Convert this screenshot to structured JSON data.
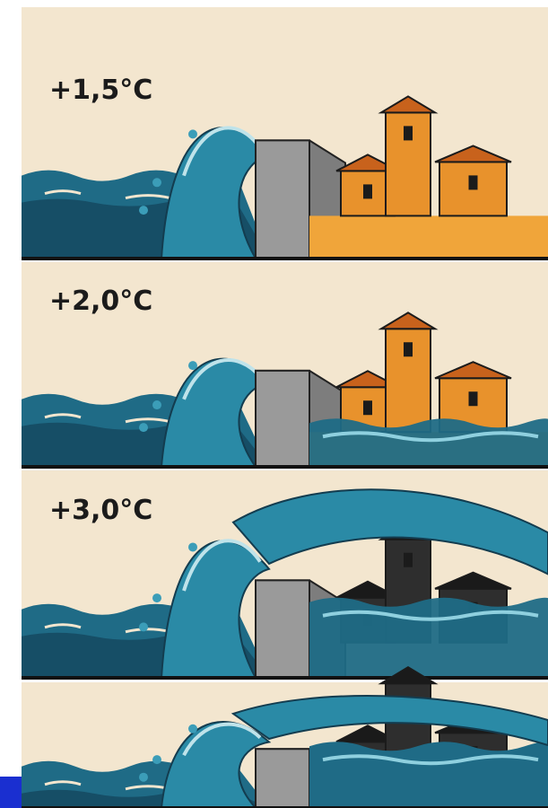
{
  "panels": [
    {
      "label": "+1,5°C"
    },
    {
      "label": "+2,0°C"
    },
    {
      "label": "+3,0°C"
    }
  ]
}
